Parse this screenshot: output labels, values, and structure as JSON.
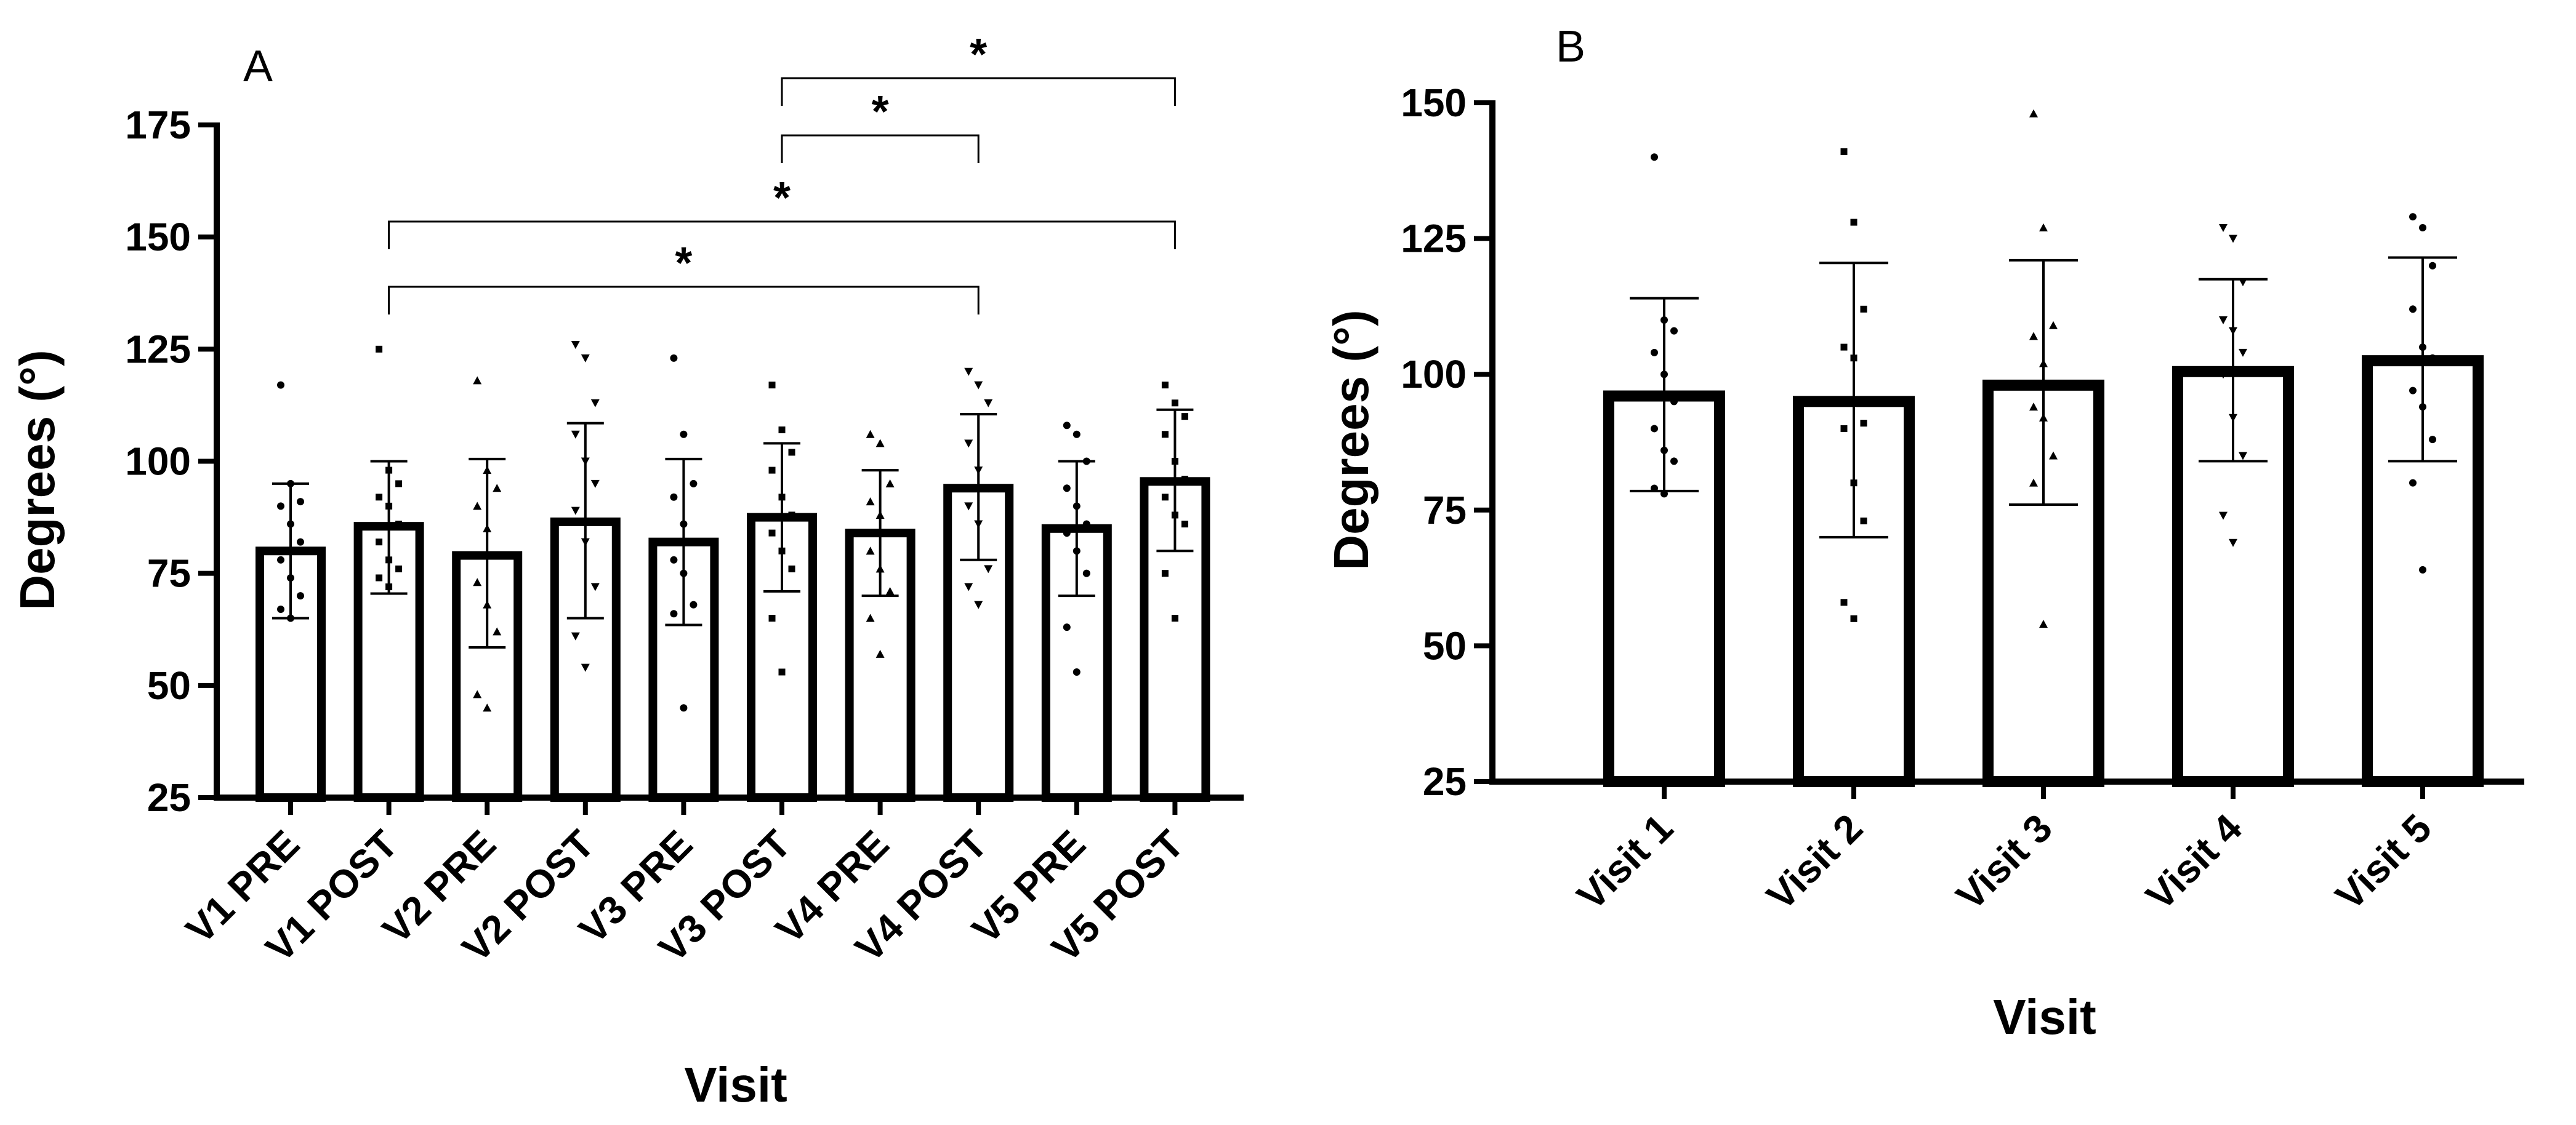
{
  "chart_data": [
    {
      "panel": "A",
      "type": "bar",
      "xlabel": "Visit",
      "ylabel": "Degrees (°)",
      "ylim": [
        25,
        175
      ],
      "yticks": [
        25,
        50,
        75,
        100,
        125,
        150,
        175
      ],
      "categories": [
        "V1 PRE",
        "V1 POST",
        "V2 PRE",
        "V2 POST",
        "V3 PRE",
        "V3 POST",
        "V4 PRE",
        "V4 POST",
        "V5 PRE",
        "V5 POST"
      ],
      "values": [
        80,
        85.5,
        79,
        86.5,
        82,
        87.5,
        84,
        94,
        85,
        95.5
      ],
      "error_upper": [
        95,
        100,
        100.5,
        108.5,
        100.5,
        104,
        98,
        110.5,
        100,
        111.5
      ],
      "error_lower": [
        65,
        70.5,
        58.5,
        65,
        63.5,
        71,
        70,
        78,
        70,
        80
      ],
      "points": [
        [
          117,
          95,
          91,
          90,
          86,
          82,
          78,
          74,
          70,
          67,
          65
        ],
        [
          125,
          98,
          95,
          92,
          90,
          86,
          82,
          78,
          76,
          74,
          72
        ],
        [
          118,
          98,
          94,
          90,
          85,
          79,
          73,
          68,
          62,
          48,
          45
        ],
        [
          126,
          123,
          113,
          106,
          100,
          95,
          89,
          82,
          72,
          61,
          54
        ],
        [
          123,
          106,
          95,
          92,
          86,
          82,
          78,
          75,
          68,
          66,
          45
        ],
        [
          117,
          107,
          102,
          98,
          92,
          88,
          84,
          80,
          76,
          65,
          53
        ],
        [
          106,
          104,
          95,
          91,
          88,
          84,
          80,
          76,
          71,
          65,
          57
        ],
        [
          120,
          117,
          113,
          104,
          98,
          94,
          90,
          86,
          76,
          72,
          68
        ],
        [
          108,
          106,
          100,
          94,
          90,
          86,
          84,
          80,
          75,
          63,
          53
        ],
        [
          117,
          113,
          110,
          106,
          100,
          96,
          92,
          88,
          86,
          75,
          65
        ]
      ],
      "significance": [
        {
          "from": "V1 POST",
          "to": "V4 POST",
          "label": "*"
        },
        {
          "from": "V1 POST",
          "to": "V5 POST",
          "label": "*"
        },
        {
          "from": "V3 POST",
          "to": "V4 POST",
          "label": "*"
        },
        {
          "from": "V3 POST",
          "to": "V5 POST",
          "label": "*"
        }
      ]
    },
    {
      "panel": "B",
      "type": "bar",
      "xlabel": "Visit",
      "ylabel": "Degrees (°)",
      "ylim": [
        25,
        150
      ],
      "yticks": [
        25,
        50,
        75,
        100,
        125,
        150
      ],
      "categories": [
        "Visit 1",
        "Visit 2",
        "Visit 3",
        "Visit 4",
        "Visit 5"
      ],
      "values": [
        96,
        95,
        98,
        100.5,
        102.5
      ],
      "error_upper": [
        114,
        120.5,
        121,
        117.5,
        121.5
      ],
      "error_lower": [
        78.5,
        70,
        76,
        84,
        84
      ],
      "points": [
        [
          140,
          110,
          108,
          104,
          100,
          95,
          90,
          86,
          84,
          79,
          78
        ],
        [
          141,
          128,
          112,
          105,
          103,
          91,
          90,
          80,
          73,
          58,
          55
        ],
        [
          148,
          127,
          109,
          107,
          102,
          98,
          94,
          92,
          85,
          80,
          54
        ],
        [
          127,
          125,
          117,
          110,
          108,
          104,
          100,
          92,
          85,
          74,
          69
        ],
        [
          129,
          127,
          120,
          112,
          105,
          103,
          97,
          94,
          88,
          80,
          64
        ]
      ]
    }
  ]
}
